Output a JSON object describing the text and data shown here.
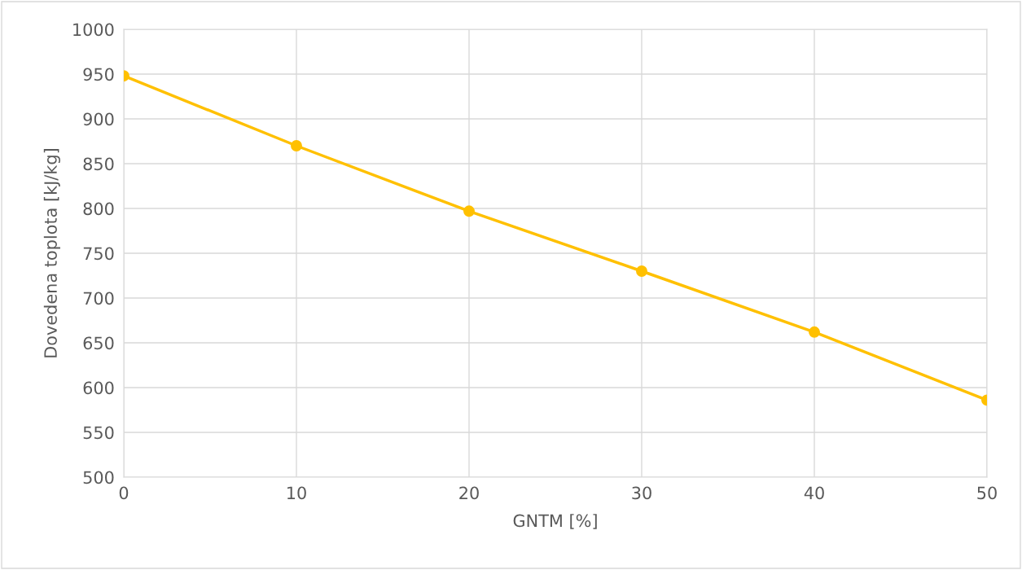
{
  "chart_data": {
    "type": "line",
    "xlabel": "GNTM [%]",
    "ylabel": "Dovedena toplota [kJ/kg]",
    "x": [
      0,
      10,
      20,
      30,
      40,
      50
    ],
    "series": [
      {
        "color": "#ffc000",
        "values": [
          948,
          870,
          797,
          730,
          662,
          586
        ]
      }
    ],
    "xlim": [
      0,
      50
    ],
    "xticks": [
      0,
      10,
      20,
      30,
      40,
      50
    ],
    "ylim": [
      500,
      1000
    ],
    "yticks": [
      500,
      550,
      600,
      650,
      700,
      750,
      800,
      850,
      900,
      950,
      1000
    ],
    "grid": true,
    "marker": "circle",
    "line_style": "solid"
  }
}
